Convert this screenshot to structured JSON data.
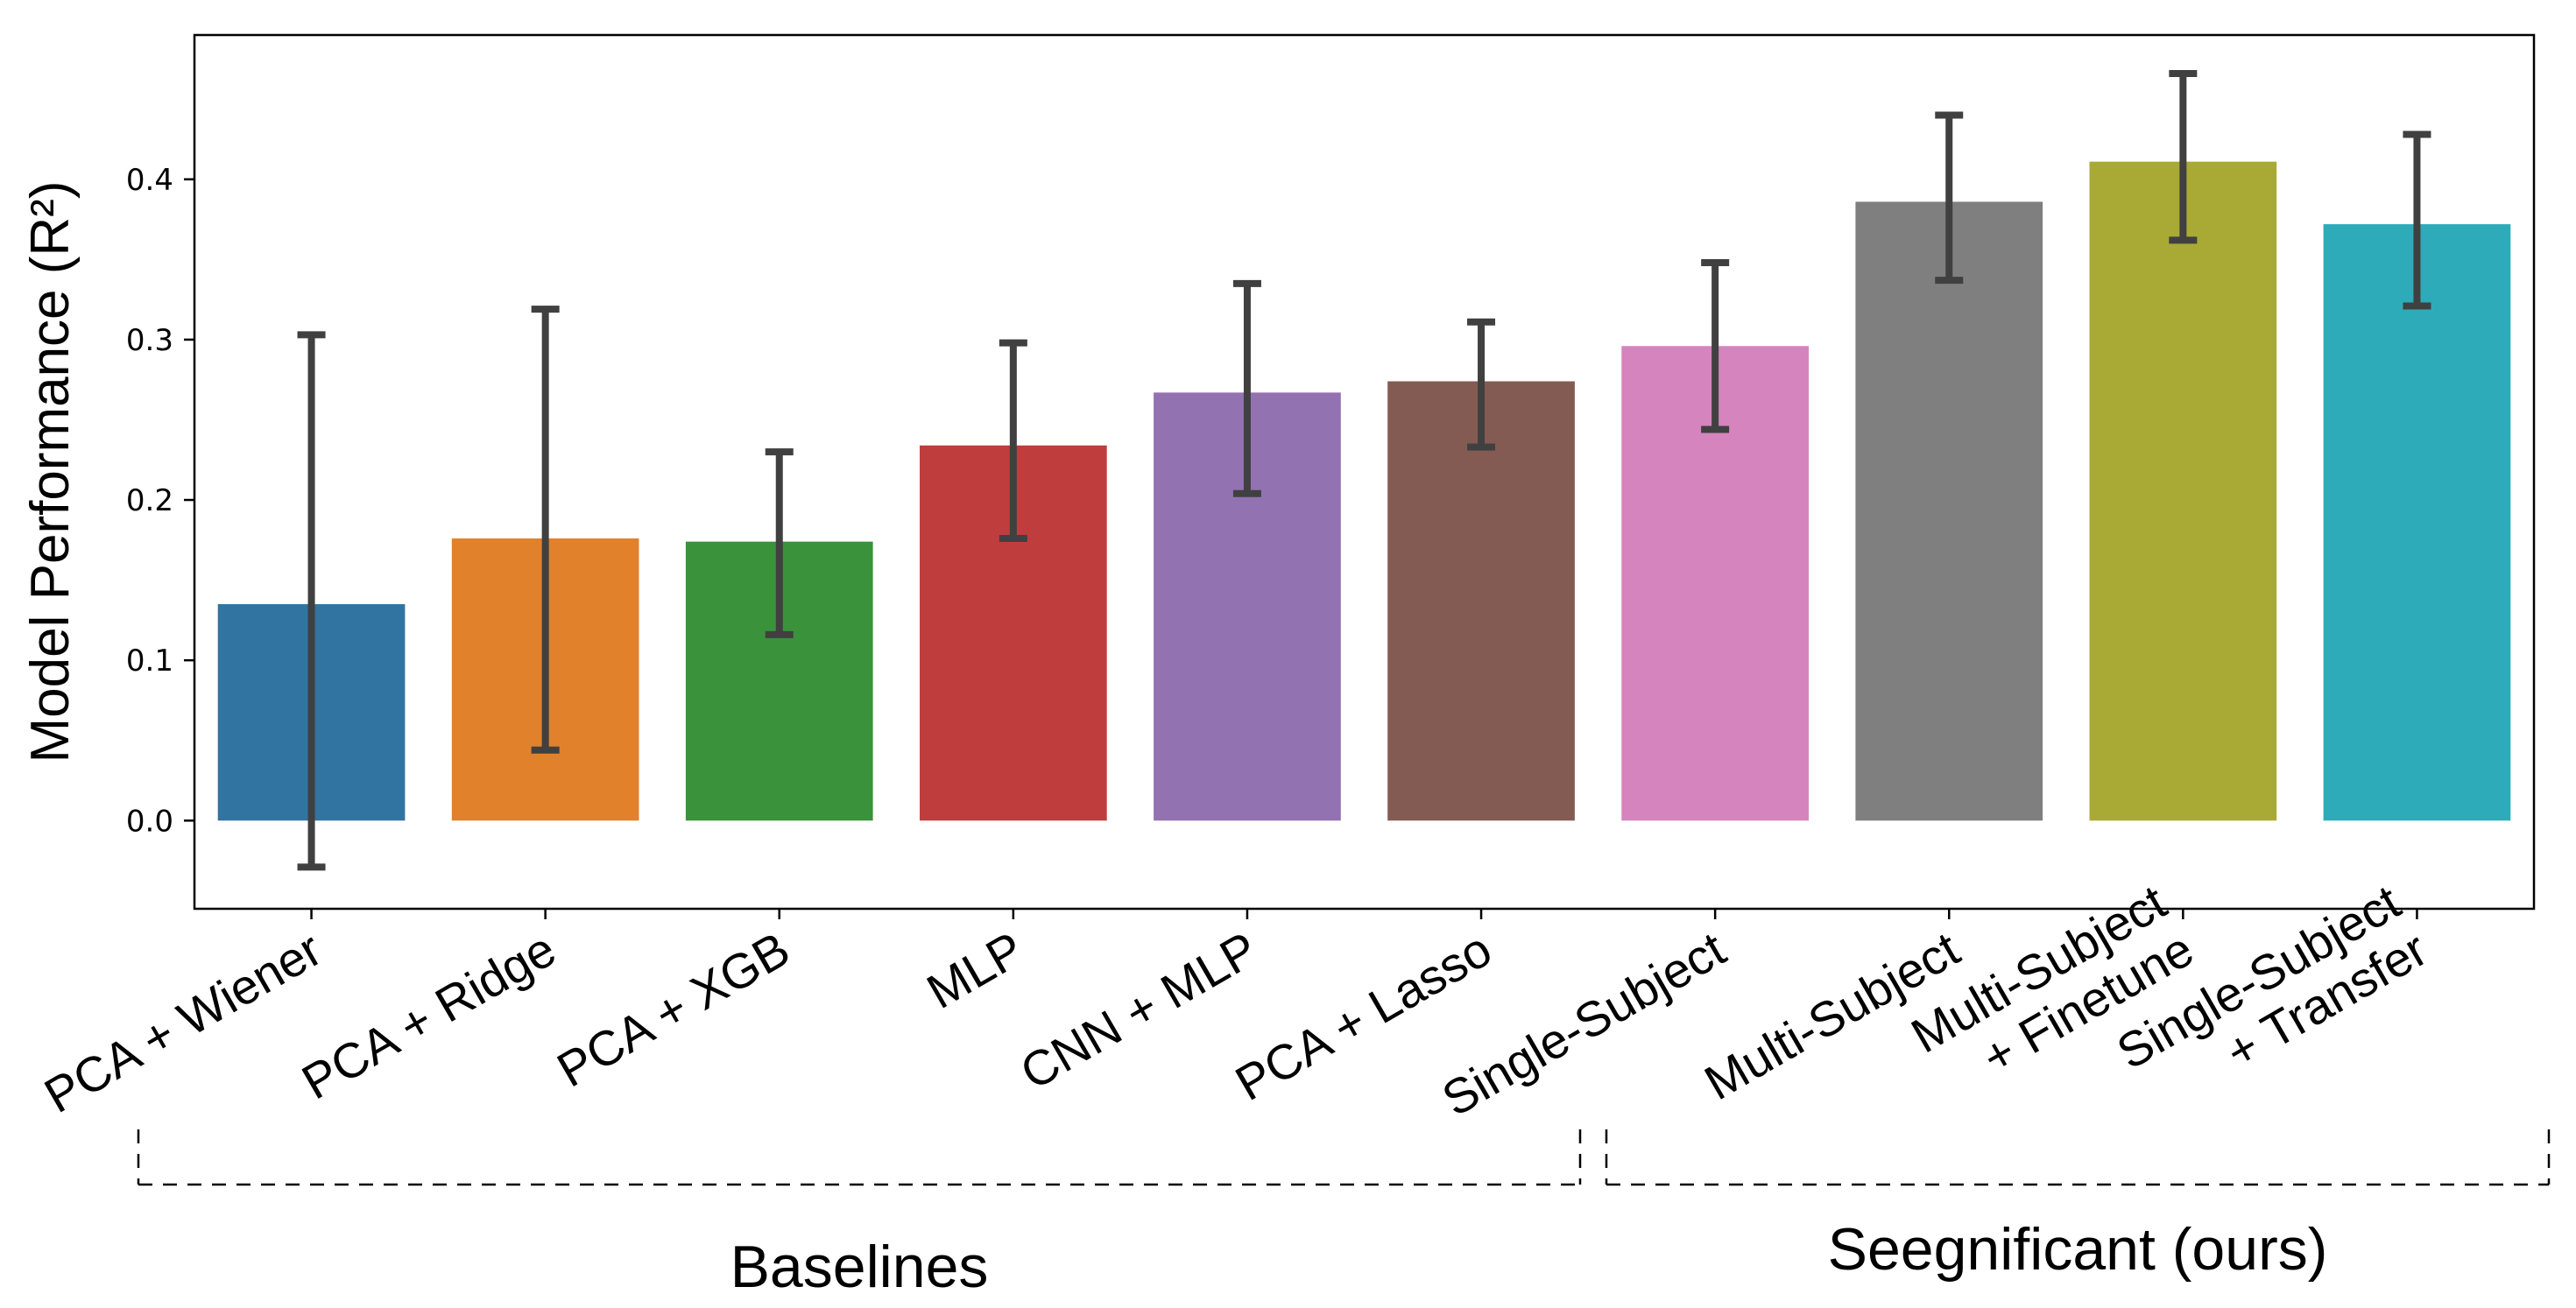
{
  "chart_data": {
    "type": "bar",
    "title": "",
    "xlabel": "",
    "ylabel": "Model Performance (R²)",
    "ylim": [
      -0.055,
      0.49
    ],
    "yticks": [
      "0.0",
      "0.1",
      "0.2",
      "0.3",
      "0.4"
    ],
    "grid": false,
    "legend": "none",
    "categories": [
      [
        "PCA + Wiener"
      ],
      [
        "PCA + Ridge"
      ],
      [
        "PCA + XGB"
      ],
      [
        "MLP"
      ],
      [
        "CNN + MLP"
      ],
      [
        "PCA + Lasso"
      ],
      [
        "Single-Subject"
      ],
      [
        "Multi-Subject"
      ],
      [
        "Multi-Subject",
        "+ Finetune"
      ],
      [
        "Single-Subject",
        "+ Transfer"
      ]
    ],
    "values": [
      0.135,
      0.176,
      0.174,
      0.234,
      0.267,
      0.274,
      0.296,
      0.386,
      0.411,
      0.372
    ],
    "error_low": [
      -0.029,
      0.044,
      0.116,
      0.176,
      0.204,
      0.233,
      0.244,
      0.337,
      0.362,
      0.321
    ],
    "error_high": [
      0.303,
      0.319,
      0.23,
      0.298,
      0.335,
      0.311,
      0.348,
      0.44,
      0.466,
      0.428
    ],
    "colors": [
      "#3274a1",
      "#e1812c",
      "#3a923a",
      "#c03d3e",
      "#9372b2",
      "#845b53",
      "#d684bd",
      "#7f7f7f",
      "#a9aa35",
      "#2eabb8"
    ],
    "error_color": "#404040",
    "groups": [
      {
        "label": "Baselines",
        "from": 0,
        "to": 5
      },
      {
        "label": "Seegnificant (ours)",
        "from": 6,
        "to": 9
      }
    ]
  }
}
